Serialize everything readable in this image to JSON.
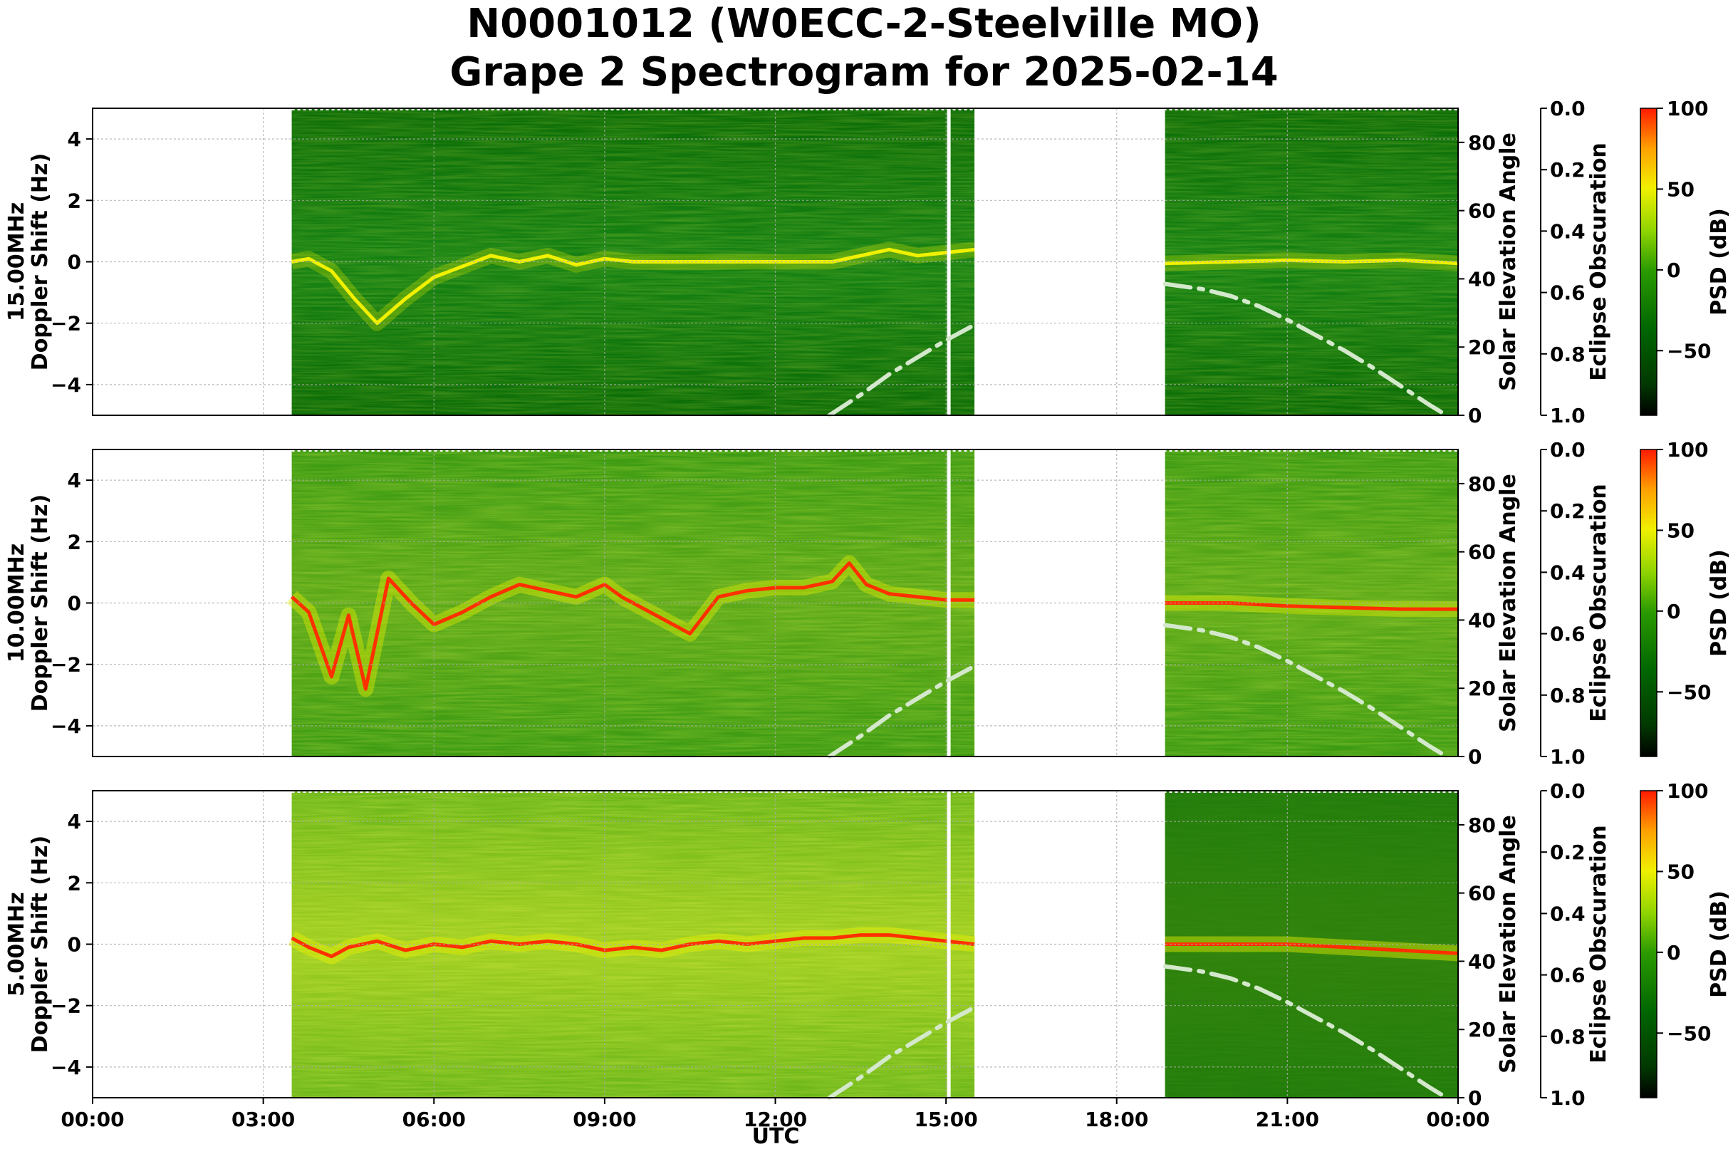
{
  "chart_data": {
    "type": "heatmap",
    "title_line1": "N0001012 (W0ECC-2-Steelville MO)",
    "title_line2": "Grape 2 Spectrogram for 2025-02-14",
    "xlabel": "UTC",
    "x_ticks": [
      "00:00",
      "03:00",
      "06:00",
      "09:00",
      "12:00",
      "15:00",
      "18:00",
      "21:00",
      "00:00"
    ],
    "xlim_hours": [
      0,
      24
    ],
    "y_ticks": [
      4,
      2,
      0,
      -2,
      -4
    ],
    "y_tick_labels": [
      "4",
      "2",
      "0",
      "−2",
      "−4"
    ],
    "ylim": [
      -5,
      5
    ],
    "y2_label": "Solar Elevation Angle",
    "y2_ticks": [
      "0",
      "20",
      "40",
      "60",
      "80"
    ],
    "y2lim": [
      0,
      90
    ],
    "eclipse_label": "Eclipse Obscuration",
    "eclipse_ticks": [
      "0.0",
      "0.2",
      "0.4",
      "0.6",
      "0.8",
      "1.0"
    ],
    "colorbar_label": "PSD (dB)",
    "colorbar_ticks": [
      "100",
      "50",
      "0",
      "−50"
    ],
    "colorbar_range": [
      -90,
      100
    ],
    "grid": true,
    "data_segments_hours": [
      [
        3.5,
        15.5
      ],
      [
        18.85,
        24.0
      ]
    ],
    "marker_line_hour": 15.05,
    "solar_elevation": {
      "morning": [
        [
          12.95,
          0
        ],
        [
          13.5,
          6
        ],
        [
          14.0,
          12
        ],
        [
          14.5,
          17
        ],
        [
          15.0,
          22
        ],
        [
          15.5,
          26.5
        ]
      ],
      "evening": [
        [
          18.85,
          38.5
        ],
        [
          19.5,
          37
        ],
        [
          20.0,
          35
        ],
        [
          20.5,
          32
        ],
        [
          21.0,
          28
        ],
        [
          21.5,
          23.5
        ],
        [
          22.0,
          19
        ],
        [
          22.5,
          14
        ],
        [
          23.0,
          8.5
        ],
        [
          23.5,
          3
        ],
        [
          23.8,
          0
        ]
      ]
    },
    "colors": {
      "low": "#005e00",
      "mid": "#c8f000",
      "high": "#ff2000",
      "elevation_curve": "#d4e8cc"
    },
    "panels": [
      {
        "freq_label": "15.00MHz",
        "ylabel": "Doppler Shift (Hz)",
        "background_level": 0.22,
        "trace_strength": 0.6,
        "doppler_trace": [
          [
            3.5,
            0.0
          ],
          [
            3.8,
            0.1
          ],
          [
            4.2,
            -0.3
          ],
          [
            4.6,
            -1.2
          ],
          [
            5.0,
            -2.0
          ],
          [
            5.5,
            -1.2
          ],
          [
            6.0,
            -0.5
          ],
          [
            7.0,
            0.2
          ],
          [
            7.5,
            0.0
          ],
          [
            8.0,
            0.2
          ],
          [
            8.5,
            -0.1
          ],
          [
            9.0,
            0.1
          ],
          [
            9.5,
            0.0
          ],
          [
            12.0,
            0.0
          ],
          [
            13.0,
            0.0
          ],
          [
            14.0,
            0.4
          ],
          [
            14.5,
            0.2
          ],
          [
            15.0,
            0.3
          ],
          [
            15.5,
            0.4
          ],
          [
            18.85,
            -0.05
          ],
          [
            20.0,
            0.0
          ],
          [
            21.0,
            0.05
          ],
          [
            22.0,
            0.0
          ],
          [
            23.0,
            0.05
          ],
          [
            24.0,
            -0.05
          ]
        ]
      },
      {
        "freq_label": "10.00MHz",
        "ylabel": "Doppler Shift (Hz)",
        "background_level": 0.38,
        "trace_strength": 0.9,
        "doppler_trace": [
          [
            3.5,
            0.2
          ],
          [
            3.8,
            -0.3
          ],
          [
            4.2,
            -2.4
          ],
          [
            4.5,
            -0.4
          ],
          [
            4.8,
            -2.8
          ],
          [
            5.2,
            0.8
          ],
          [
            5.6,
            0.0
          ],
          [
            6.0,
            -0.7
          ],
          [
            6.5,
            -0.3
          ],
          [
            7.0,
            0.2
          ],
          [
            7.5,
            0.6
          ],
          [
            8.0,
            0.4
          ],
          [
            8.5,
            0.2
          ],
          [
            9.0,
            0.6
          ],
          [
            9.3,
            0.2
          ],
          [
            10.0,
            -0.5
          ],
          [
            10.5,
            -1.0
          ],
          [
            11.0,
            0.2
          ],
          [
            11.5,
            0.4
          ],
          [
            12.0,
            0.5
          ],
          [
            12.5,
            0.5
          ],
          [
            13.0,
            0.7
          ],
          [
            13.3,
            1.3
          ],
          [
            13.6,
            0.6
          ],
          [
            14.0,
            0.3
          ],
          [
            14.5,
            0.2
          ],
          [
            15.0,
            0.1
          ],
          [
            15.5,
            0.1
          ],
          [
            18.85,
            0.0
          ],
          [
            20.0,
            0.0
          ],
          [
            21.0,
            -0.1
          ],
          [
            22.0,
            -0.15
          ],
          [
            23.0,
            -0.2
          ],
          [
            24.0,
            -0.2
          ]
        ]
      },
      {
        "freq_label": "5.00MHz",
        "ylabel": "Doppler Shift (Hz)",
        "background_level": 0.48,
        "trace_strength": 1.0,
        "doppler_trace": [
          [
            3.5,
            0.2
          ],
          [
            3.8,
            -0.1
          ],
          [
            4.2,
            -0.4
          ],
          [
            4.5,
            -0.1
          ],
          [
            5.0,
            0.1
          ],
          [
            5.5,
            -0.2
          ],
          [
            6.0,
            0.0
          ],
          [
            6.5,
            -0.1
          ],
          [
            7.0,
            0.1
          ],
          [
            7.5,
            0.0
          ],
          [
            8.0,
            0.1
          ],
          [
            8.5,
            0.0
          ],
          [
            9.0,
            -0.2
          ],
          [
            9.5,
            -0.1
          ],
          [
            10.0,
            -0.2
          ],
          [
            10.5,
            0.0
          ],
          [
            11.0,
            0.1
          ],
          [
            11.5,
            0.0
          ],
          [
            12.0,
            0.1
          ],
          [
            12.5,
            0.2
          ],
          [
            13.0,
            0.2
          ],
          [
            13.5,
            0.3
          ],
          [
            14.0,
            0.3
          ],
          [
            15.0,
            0.1
          ],
          [
            15.5,
            0.0
          ],
          [
            18.85,
            0.0
          ],
          [
            20.0,
            0.0
          ],
          [
            21.0,
            0.0
          ],
          [
            22.0,
            -0.1
          ],
          [
            23.0,
            -0.2
          ],
          [
            24.0,
            -0.3
          ]
        ]
      }
    ]
  }
}
